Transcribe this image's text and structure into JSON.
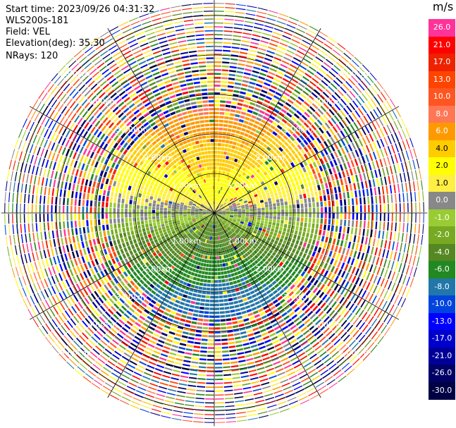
{
  "header": {
    "start_time": "Start time: 2023/09/26 04:31:32",
    "instrument": "WLS200s-181",
    "field": "Field: VEL",
    "elevation": "Elevation(deg): 35.30",
    "nrays": "NRays: 120"
  },
  "chart_data": {
    "type": "heatmap",
    "projection": "polar-ppi",
    "field": "VEL",
    "units": "m/s",
    "n_rays": 120,
    "range_rings_km": [
      1.0,
      2.0,
      3.0,
      4.0,
      5.0
    ],
    "range_labels": [
      "1.00km",
      "2.00km",
      "3.00km",
      "4.00km",
      "5.00km"
    ],
    "max_range_km": 5.4,
    "coherent_range_km": 2.7,
    "spokes_deg": [
      0,
      30,
      60,
      90,
      120,
      150,
      180,
      210,
      240,
      270,
      300,
      330
    ],
    "velocity_pattern": "positive (toward N) to negative (toward S); noise beyond ~2.7 km",
    "colorbar": {
      "unit_label": "m/s",
      "levels": [
        {
          "label": "26.0",
          "color": "#ff3399"
        },
        {
          "label": "21.0",
          "color": "#ff0000"
        },
        {
          "label": "17.0",
          "color": "#ee2200"
        },
        {
          "label": "13.0",
          "color": "#ff4400"
        },
        {
          "label": "10.0",
          "color": "#ff5522"
        },
        {
          "label": "8.0",
          "color": "#ff7755"
        },
        {
          "label": "6.0",
          "color": "#ff9900"
        },
        {
          "label": "4.0",
          "color": "#ffcc00"
        },
        {
          "label": "2.0",
          "color": "#ffff00"
        },
        {
          "label": "1.0",
          "color": "#ffee44"
        },
        {
          "label": "0.0",
          "color": "#888888"
        },
        {
          "label": "-1.0",
          "color": "#99cc33"
        },
        {
          "label": "-2.0",
          "color": "#77aa22"
        },
        {
          "label": "-4.0",
          "color": "#558822"
        },
        {
          "label": "-6.0",
          "color": "#228822"
        },
        {
          "label": "-8.0",
          "color": "#2277aa"
        },
        {
          "label": "-10.0",
          "color": "#0044dd"
        },
        {
          "label": "-13.0",
          "color": "#0000ff"
        },
        {
          "label": "-17.0",
          "color": "#0000cc"
        },
        {
          "label": "-21.0",
          "color": "#000099"
        },
        {
          "label": "-26.0",
          "color": "#000066"
        },
        {
          "label": "-30.0",
          "color": "#000044"
        }
      ]
    }
  }
}
